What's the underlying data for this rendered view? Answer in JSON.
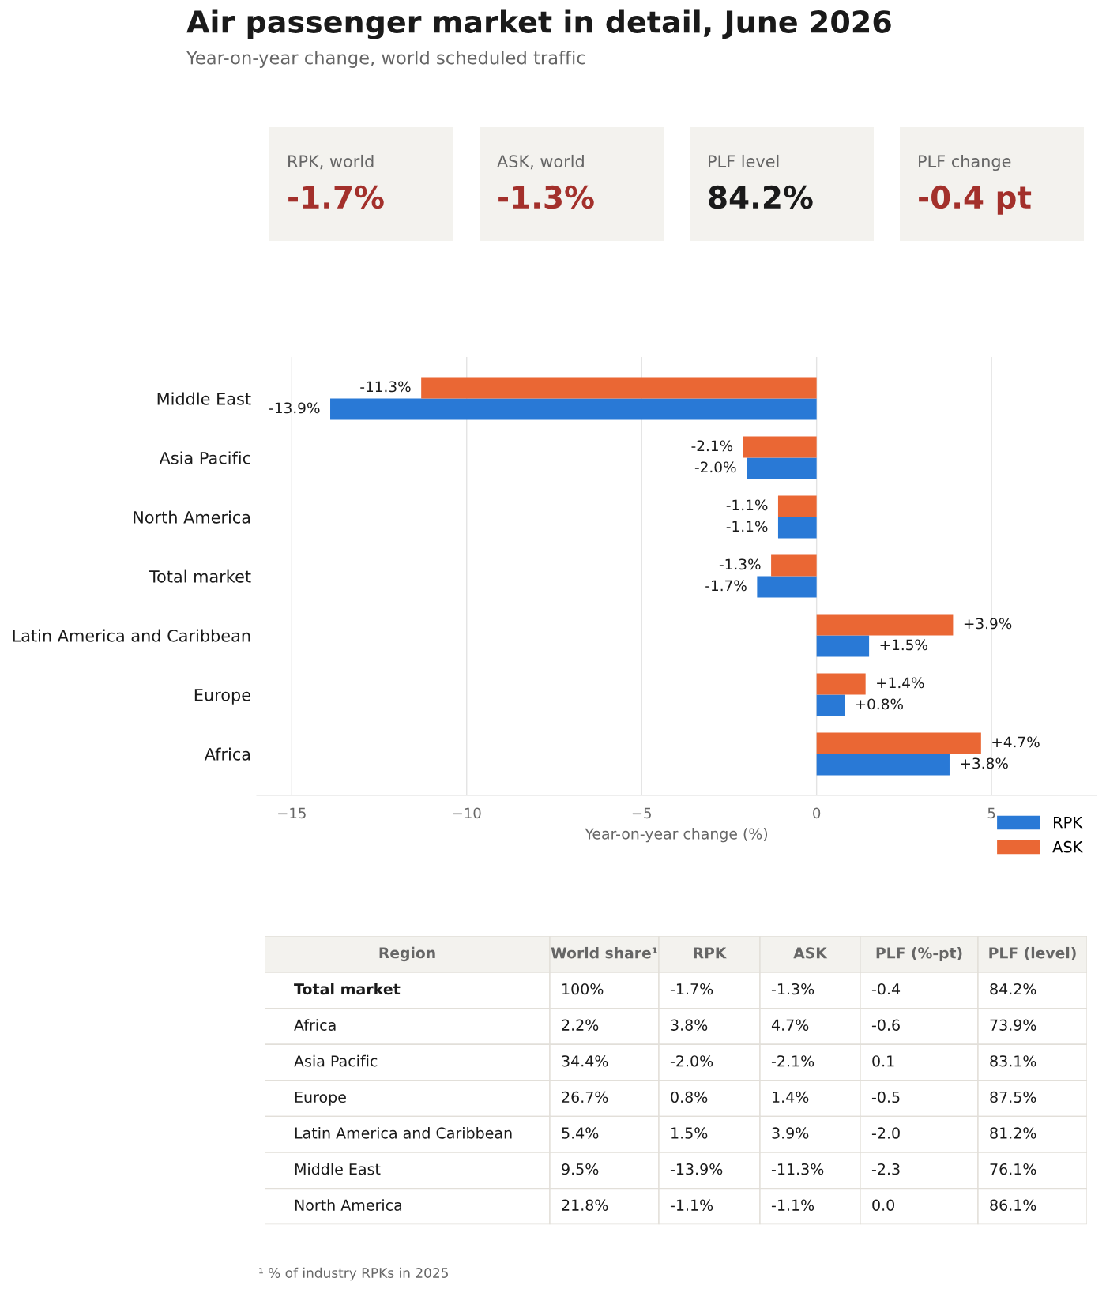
{
  "chart_data": [
    {
      "type": "other",
      "title": "Air passenger market in detail, June 2026",
      "subtitle": "Year-on-year change, world scheduled traffic",
      "categories": [
        "RPK, world",
        "ASK, world",
        "PLF level",
        "PLF change"
      ],
      "values": [
        -1.7,
        -1.3,
        84.2,
        -0.4
      ],
      "value_labels": [
        "-1.7%",
        "-1.3%",
        "84.2%",
        "-0.4 pt"
      ],
      "colors": [
        "#f3f2ee",
        "#f3f2ee",
        "#f3f2ee",
        "#f3f2ee"
      ]
    },
    {
      "type": "bar",
      "orientation": "horizontal",
      "categories": [
        "Middle East",
        "Asia Pacific",
        "North America",
        "Total market",
        "Latin America and Caribbean",
        "Europe",
        "Africa"
      ],
      "series": [
        {
          "name": "RPK",
          "color": "#2979d6",
          "values": [
            -13.9,
            -2.0,
            -1.1,
            -1.7,
            1.5,
            0.8,
            3.8
          ],
          "value_labels": [
            "-13.9%",
            "-2.0%",
            "-1.1%",
            "-1.7%",
            "+1.5%",
            "+0.8%",
            "+3.8%"
          ]
        },
        {
          "name": "ASK",
          "color": "#ea6734",
          "values": [
            -11.3,
            -2.1,
            -1.1,
            -1.3,
            3.9,
            1.4,
            4.7
          ],
          "value_labels": [
            "-11.3%",
            "-2.1%",
            "-1.1%",
            "-1.3%",
            "+3.9%",
            "+1.4%",
            "+4.7%"
          ]
        }
      ],
      "xlim": [
        -16,
        8
      ],
      "xticks": [
        {
          "value": -15,
          "label": "−15"
        },
        {
          "value": -10,
          "label": "−10"
        },
        {
          "value": -5,
          "label": "−5"
        },
        0,
        5
      ],
      "xlabel": "Year-on-year change (%)",
      "grid": "x",
      "legend": "bottom right"
    },
    {
      "type": "other",
      "categories": [
        "Region",
        "World share¹",
        "RPK",
        "ASK",
        "PLF (%-pt)",
        "PLF (level)"
      ],
      "cell_labels": [
        [
          "Total market",
          "100%",
          "-1.7%",
          "-1.3%",
          "-0.4",
          "84.2%"
        ],
        [
          "Africa",
          "2.2%",
          "3.8%",
          "4.7%",
          "-0.6",
          "73.9%"
        ],
        [
          "Asia Pacific",
          "34.4%",
          "-2.0%",
          "-2.1%",
          "0.1",
          "83.1%"
        ],
        [
          "Europe",
          "26.7%",
          "0.8%",
          "1.4%",
          "-0.5",
          "87.5%"
        ],
        [
          "Latin America and Caribbean",
          "5.4%",
          "1.5%",
          "3.9%",
          "-2.0",
          "81.2%"
        ],
        [
          "Middle East",
          "9.5%",
          "-13.9%",
          "-11.3%",
          "-2.3",
          "76.1%"
        ],
        [
          "North America",
          "21.8%",
          "-1.1%",
          "-1.1%",
          "0.0",
          "86.1%"
        ]
      ],
      "annotations": [
        "¹ % of industry RPKs in 2025"
      ]
    }
  ]
}
